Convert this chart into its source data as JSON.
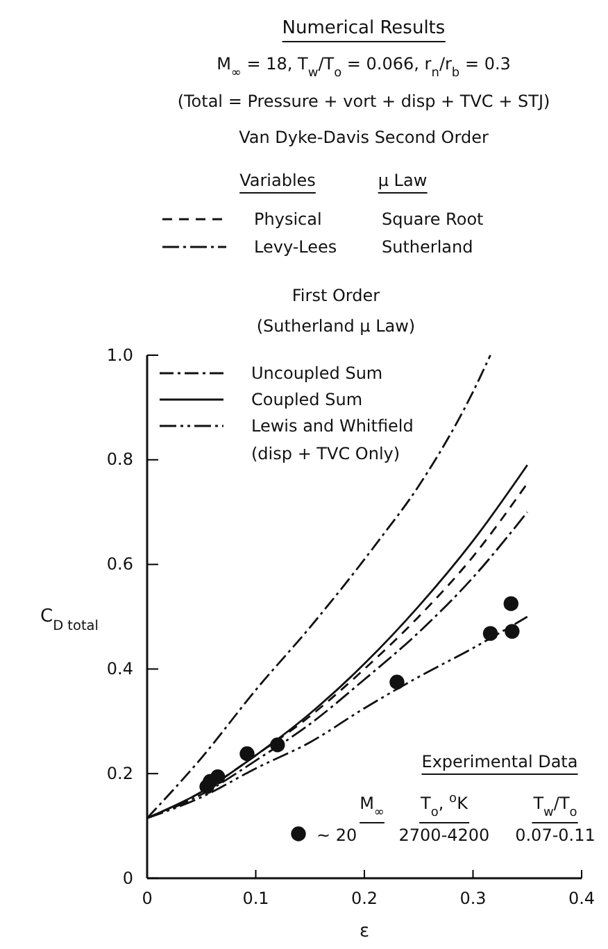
{
  "chart_data": {
    "type": "line",
    "title": "Numerical Results",
    "subtitle": "M$_{∞}$ = 18,  T$_{w}$/T$_{o}$ = 0.066,  r$_{n}$/r$_{b}$ = 0.3",
    "xlabel": "ε",
    "ylabel": "C$_{D total}$",
    "xlim": [
      0,
      0.4
    ],
    "ylim": [
      0,
      1.0
    ],
    "xticks": [
      0,
      0.1,
      0.2,
      0.3,
      0.4
    ],
    "yticks": [
      0,
      0.2,
      0.4,
      0.6,
      0.8,
      {
        "value": 1.0,
        "label": "1.0"
      }
    ],
    "grid": false,
    "legend": "top left",
    "series": [
      {
        "name": "Physical",
        "color": "#111111",
        "line_style": "dashed",
        "x": [
          0,
          0.05,
          0.1,
          0.15,
          0.2,
          0.25,
          0.3,
          0.35
        ],
        "values": [
          0.115,
          0.165,
          0.235,
          0.31,
          0.4,
          0.5,
          0.615,
          0.755
        ]
      },
      {
        "name": "Levy-Lees",
        "color": "#111111",
        "line_style": "dashed",
        "x": [
          0,
          0.05,
          0.1,
          0.15,
          0.2,
          0.25,
          0.3,
          0.35
        ],
        "values": [
          0.115,
          0.16,
          0.225,
          0.295,
          0.38,
          0.47,
          0.575,
          0.7
        ]
      },
      {
        "name": "Uncoupled Sum",
        "color": "#111111",
        "line_style": "dashed",
        "x": [
          0,
          0.05,
          0.1,
          0.15,
          0.213,
          0.25,
          0.3,
          0.316
        ],
        "values": [
          0.115,
          0.23,
          0.36,
          0.48,
          0.645,
          0.75,
          0.93,
          1.0
        ]
      },
      {
        "name": "Coupled Sum",
        "color": "#111111",
        "line_style": "solid",
        "x": [
          0,
          0.05,
          0.1,
          0.15,
          0.2,
          0.25,
          0.3,
          0.35
        ],
        "values": [
          0.115,
          0.165,
          0.235,
          0.315,
          0.41,
          0.52,
          0.645,
          0.79
        ]
      },
      {
        "name": "Lewis and Whitfield\n(disp + TVC Only)",
        "color": "#111111",
        "line_style": "dashed",
        "x": [
          0,
          0.05,
          0.1,
          0.15,
          0.2,
          0.25,
          0.3,
          0.35
        ],
        "values": [
          0.115,
          0.155,
          0.21,
          0.26,
          0.325,
          0.385,
          0.44,
          0.5
        ]
      },
      {
        "name": "~ 20",
        "type": "scatter",
        "marker": "circle",
        "color": "#111111",
        "x": [
          0.055,
          0.058,
          0.065,
          0.092,
          0.12,
          0.23,
          0.316,
          0.335,
          0.336
        ],
        "values": [
          0.175,
          0.185,
          0.194,
          0.238,
          0.255,
          0.375,
          0.468,
          0.525,
          0.472
        ]
      }
    ],
    "annotations": [
      "(Total = Pressure + vort + disp + TVC + STJ)",
      "Van Dyke-Davis Second Order",
      "Variables",
      "μ Law",
      "Square Root",
      "Sutherland",
      "First Order",
      "(Sutherland μ Law)",
      "Experimental Data",
      "M$_{∞}$",
      "T$_{o}$, $^{o}$K",
      "T$_{w}$/T$_{o}$",
      "2700-4200",
      "0.07-0.11"
    ]
  }
}
